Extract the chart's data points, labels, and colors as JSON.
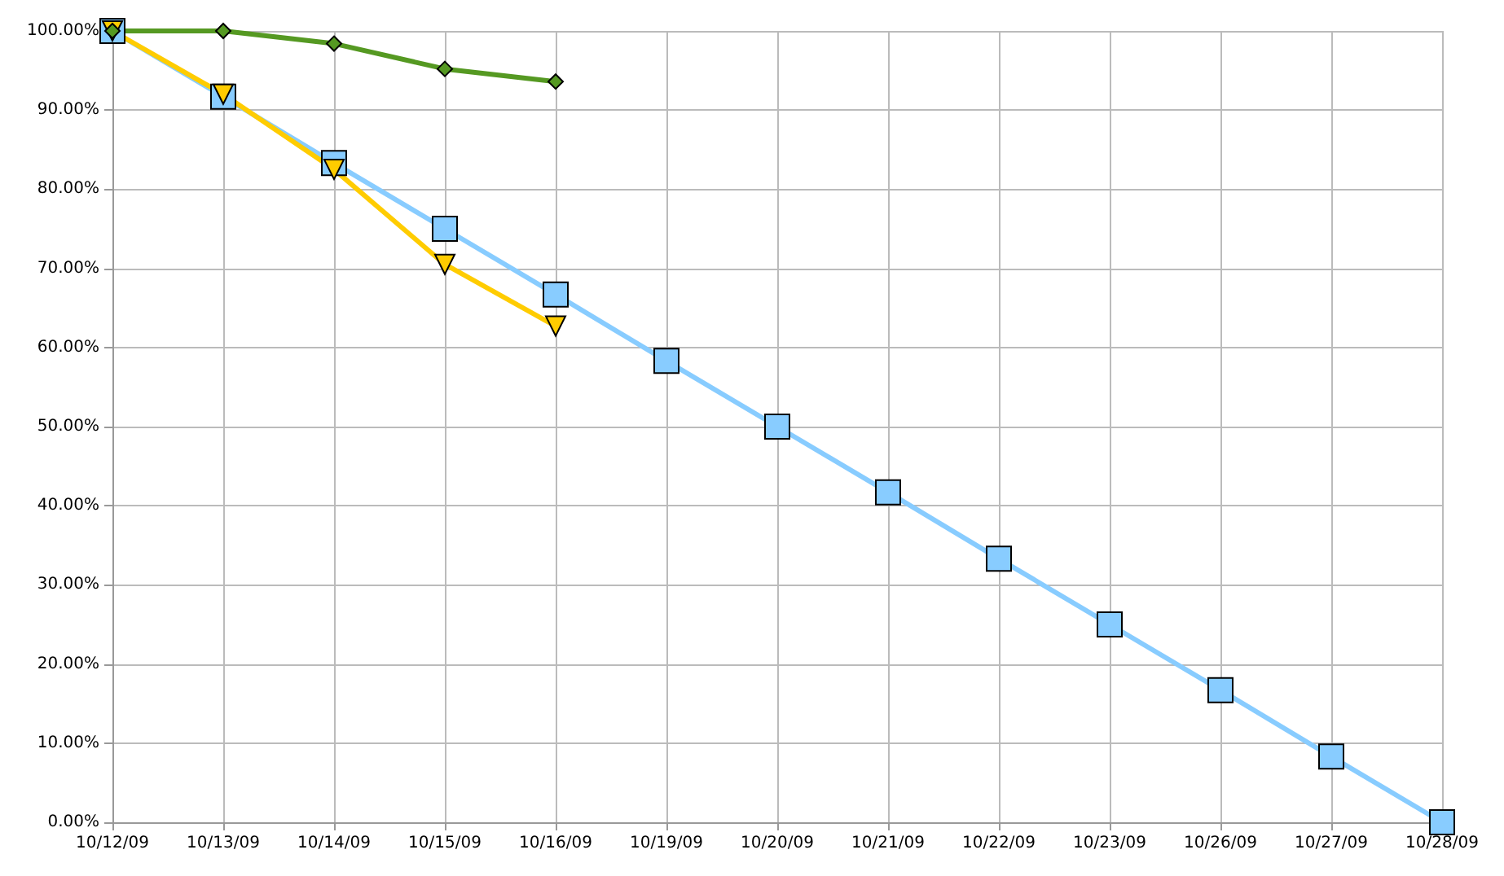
{
  "chart_data": {
    "type": "line",
    "categories": [
      "10/12/09",
      "10/13/09",
      "10/14/09",
      "10/15/09",
      "10/16/09",
      "10/19/09",
      "10/20/09",
      "10/21/09",
      "10/22/09",
      "10/23/09",
      "10/26/09",
      "10/27/09",
      "10/28/09"
    ],
    "series": [
      {
        "color": "#88ccff",
        "marker": "square",
        "values": [
          100,
          91.7,
          83.3,
          75,
          66.7,
          58.3,
          50,
          41.7,
          33.3,
          25,
          16.7,
          8.3,
          0
        ]
      },
      {
        "color": "#ffcc00",
        "marker": "triangle",
        "values": [
          100,
          92,
          82.5,
          70.5,
          62.7,
          null,
          null,
          null,
          null,
          null,
          null,
          null,
          null
        ]
      },
      {
        "color": "#559922",
        "marker": "diamond",
        "values": [
          100,
          100,
          98.4,
          95.2,
          93.6,
          null,
          null,
          null,
          null,
          null,
          null,
          null,
          null
        ]
      }
    ],
    "ylim": [
      0,
      100
    ],
    "yticks": [
      {
        "value": 0,
        "label": "0.00%"
      },
      {
        "value": 10,
        "label": "10.00%"
      },
      {
        "value": 20,
        "label": "20.00%"
      },
      {
        "value": 30,
        "label": "30.00%"
      },
      {
        "value": 40,
        "label": "40.00%"
      },
      {
        "value": 50,
        "label": "50.00%"
      },
      {
        "value": 60,
        "label": "60.00%"
      },
      {
        "value": 70,
        "label": "70.00%"
      },
      {
        "value": 80,
        "label": "80.00%"
      },
      {
        "value": 90,
        "label": "90.00%"
      },
      {
        "value": 100,
        "label": "100.00%"
      }
    ],
    "grid": true,
    "line_style": "solid"
  }
}
